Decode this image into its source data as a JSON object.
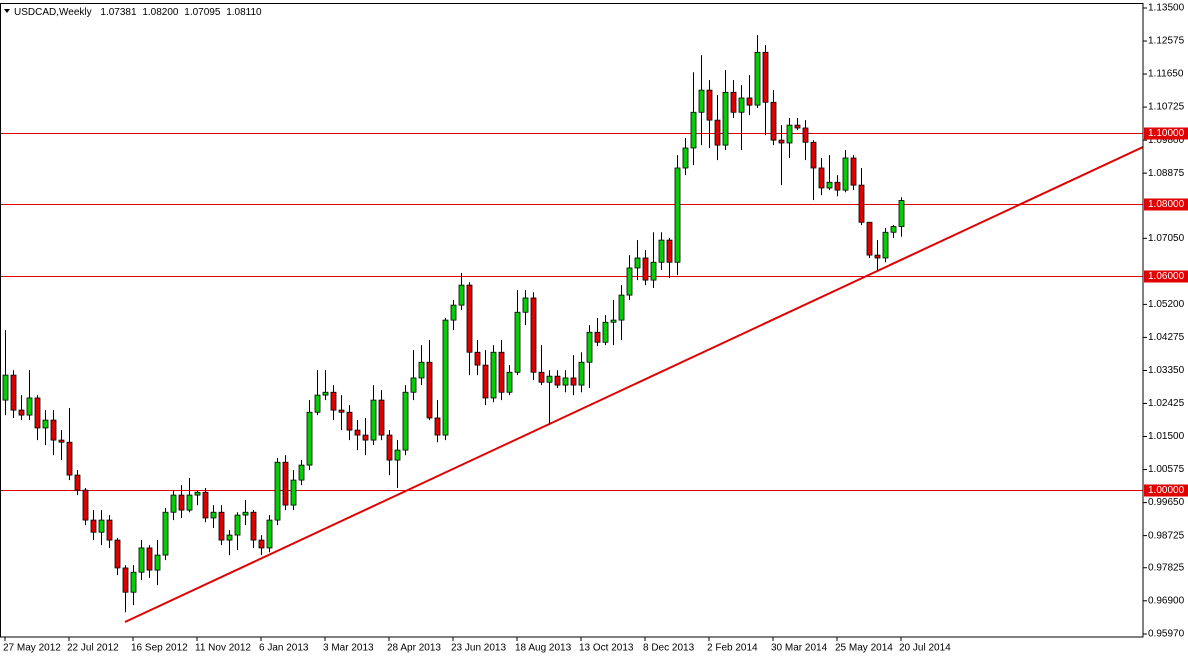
{
  "header": {
    "symbol": "USDCAD,Weekly",
    "quote": [
      "1.07381",
      "1.08200",
      "1.07095",
      "1.08110"
    ]
  },
  "chart_data": {
    "type": "candlestick",
    "categories": [
      "27 May 2012",
      null,
      null,
      null,
      null,
      null,
      null,
      null,
      "22 Jul 2012",
      null,
      null,
      null,
      null,
      null,
      null,
      null,
      "16 Sep 2012",
      null,
      null,
      null,
      null,
      null,
      null,
      null,
      "11 Nov 2012",
      null,
      null,
      null,
      null,
      null,
      null,
      null,
      "6 Jan 2013",
      null,
      null,
      null,
      null,
      null,
      null,
      null,
      "3 Mar 2013",
      null,
      null,
      null,
      null,
      null,
      null,
      null,
      "28 Apr 2013",
      null,
      null,
      null,
      null,
      null,
      null,
      null,
      "23 Jun 2013",
      null,
      null,
      null,
      null,
      null,
      null,
      null,
      "18 Aug 2013",
      null,
      null,
      null,
      null,
      null,
      null,
      null,
      "13 Oct 2013",
      null,
      null,
      null,
      null,
      null,
      null,
      null,
      "8 Dec 2013",
      null,
      null,
      null,
      null,
      null,
      null,
      null,
      "2 Feb 2014",
      null,
      null,
      null,
      null,
      null,
      null,
      null,
      "30 Mar 2014",
      null,
      null,
      null,
      null,
      null,
      null,
      null,
      "25 May 2014",
      null,
      null,
      null,
      null,
      null,
      null,
      null,
      "20 Jul 2014"
    ],
    "open": [
      1.0252,
      1.0322,
      1.0224,
      1.021,
      1.0258,
      1.0174,
      1.0196,
      1.014,
      1.0134,
      1.0042,
      1.0,
      0.9916,
      0.9882,
      0.9916,
      0.986,
      0.9782,
      0.9714,
      0.977,
      0.9838,
      0.9776,
      0.9818,
      0.9938,
      0.9986,
      0.9944,
      0.9986,
      0.9994,
      0.9922,
      0.9938,
      0.986,
      0.9874,
      0.993,
      0.9938,
      0.986,
      0.9838,
      0.9916,
      1.0078,
      0.9958,
      1.0028,
      1.007,
      1.0218,
      1.0266,
      1.0274,
      1.0224,
      1.0218,
      1.0168,
      1.0154,
      1.014,
      1.0252,
      1.0154,
      1.0084,
      1.0112,
      1.0274,
      1.0314,
      1.0358,
      1.0202,
      1.0154,
      1.0476,
      1.0518,
      1.0574,
      1.0386,
      1.035,
      1.0258,
      1.0386,
      1.0274,
      1.033,
      1.0498,
      1.0538,
      1.033,
      1.0302,
      1.0319,
      1.0294,
      1.0314,
      1.0294,
      1.0358,
      1.0442,
      1.0414,
      1.047,
      1.0476,
      1.0546,
      1.0622,
      1.065,
      1.0588,
      1.0638,
      1.07,
      1.0638,
      1.0902,
      1.0958,
      1.1058,
      1.112,
      1.1036,
      1.0966,
      1.1114,
      1.1058,
      1.1098,
      1.1078,
      1.1226,
      1.1086,
      1.098,
      1.0972,
      1.1022,
      1.1014,
      1.0974,
      1.0902,
      1.0846,
      1.0862,
      1.084,
      1.093,
      1.0854,
      1.075,
      1.0658,
      1.065,
      1.0722,
      1.07381
    ],
    "high": [
      1.0448,
      1.0336,
      1.0266,
      1.0336,
      1.0266,
      1.0224,
      1.0224,
      1.0168,
      1.023,
      1.0056,
      1.0006,
      0.9944,
      0.9944,
      0.993,
      0.9866,
      0.979,
      0.979,
      0.986,
      0.9846,
      0.986,
      0.995,
      1.0,
      1.0014,
      1.0034,
      1.0,
      1.0006,
      0.9958,
      0.9958,
      0.9888,
      0.9938,
      0.9972,
      0.9944,
      0.9874,
      0.993,
      1.009,
      1.0098,
      1.0056,
      1.0084,
      1.0252,
      1.0336,
      1.0336,
      1.0294,
      1.0266,
      1.0238,
      1.0196,
      1.0202,
      1.0294,
      1.028,
      1.0168,
      1.014,
      1.0294,
      1.0392,
      1.0406,
      1.042,
      1.0252,
      1.0482,
      1.0532,
      1.0608,
      1.0582,
      1.042,
      1.0392,
      1.0406,
      1.042,
      1.035,
      1.056,
      1.056,
      1.0554,
      1.0406,
      1.0336,
      1.0336,
      1.0336,
      1.0378,
      1.0386,
      1.0462,
      1.0482,
      1.049,
      1.0532,
      1.0574,
      1.0658,
      1.07,
      1.0672,
      1.0722,
      1.0722,
      1.0706,
      1.0938,
      1.0986,
      1.117,
      1.1218,
      1.1148,
      1.1106,
      1.1176,
      1.1148,
      1.1134,
      1.1162,
      1.1274,
      1.1246,
      1.112,
      1.1022,
      1.1042,
      1.1042,
      1.1036,
      1.098,
      1.093,
      1.0938,
      1.0882,
      1.0952,
      1.0938,
      1.0902,
      1.075,
      1.07,
      1.0734,
      1.0742,
      1.082
    ],
    "low": [
      1.021,
      1.0202,
      1.0196,
      1.0196,
      1.014,
      1.0126,
      1.0098,
      1.0084,
      1.0028,
      0.9986,
      0.9902,
      0.986,
      0.9846,
      0.9838,
      0.9762,
      0.9658,
      0.9678,
      0.9748,
      0.9754,
      0.9734,
      0.9804,
      0.9916,
      0.9922,
      0.9938,
      0.9958,
      0.991,
      0.9894,
      0.9846,
      0.9818,
      0.9832,
      0.9902,
      0.9838,
      0.9818,
      0.9826,
      0.9902,
      0.9944,
      0.9944,
      1.0014,
      1.0056,
      1.021,
      1.0252,
      1.0196,
      1.0168,
      1.014,
      1.0112,
      1.0098,
      1.0126,
      1.014,
      1.0042,
      1.0006,
      1.0098,
      1.0252,
      1.0294,
      1.0196,
      1.0134,
      1.014,
      1.0448,
      1.0504,
      1.0322,
      1.0322,
      1.0238,
      1.0246,
      1.0252,
      1.0266,
      1.0322,
      1.0462,
      1.0308,
      1.0294,
      1.0182,
      1.0286,
      1.0274,
      1.0266,
      1.0274,
      1.0286,
      1.0403,
      1.0406,
      1.0406,
      1.042,
      1.0532,
      1.0588,
      1.0574,
      1.0566,
      1.0616,
      1.0594,
      1.0602,
      1.0882,
      1.091,
      1.0966,
      1.0958,
      1.0924,
      1.0952,
      1.1042,
      1.0952,
      1.105,
      1.107,
      1.0994,
      1.0966,
      1.0854,
      1.093,
      1.1008,
      1.0924,
      1.0812,
      1.0826,
      1.084,
      1.0823,
      1.0834,
      1.084,
      1.0742,
      1.065,
      1.0616,
      1.0638,
      1.0706,
      1.07095
    ],
    "close": [
      1.0322,
      1.0224,
      1.021,
      1.0258,
      1.0174,
      1.0196,
      1.014,
      1.0134,
      1.0042,
      1.0,
      0.9916,
      0.9882,
      0.9916,
      0.986,
      0.9782,
      0.9714,
      0.977,
      0.9838,
      0.9776,
      0.9818,
      0.9938,
      0.9986,
      0.9944,
      0.9986,
      0.9994,
      0.9922,
      0.9938,
      0.986,
      0.9874,
      0.993,
      0.9938,
      0.986,
      0.9838,
      0.9916,
      1.0078,
      0.9958,
      1.0028,
      1.007,
      1.0218,
      1.0266,
      1.0274,
      1.0224,
      1.0218,
      1.0168,
      1.0154,
      1.014,
      1.0252,
      1.0154,
      1.0084,
      1.0112,
      1.0274,
      1.0314,
      1.0358,
      1.0202,
      1.0154,
      1.0476,
      1.0518,
      1.0574,
      1.0386,
      1.035,
      1.0258,
      1.0386,
      1.0274,
      1.033,
      1.0498,
      1.0538,
      1.033,
      1.0302,
      1.0319,
      1.0294,
      1.0314,
      1.0294,
      1.0358,
      1.0442,
      1.0414,
      1.047,
      1.0476,
      1.0546,
      1.0622,
      1.065,
      1.0588,
      1.0638,
      1.07,
      1.0638,
      1.0902,
      1.0958,
      1.1058,
      1.112,
      1.1036,
      1.0966,
      1.1114,
      1.1058,
      1.1098,
      1.1078,
      1.1226,
      1.1086,
      1.098,
      1.0972,
      1.1022,
      1.1014,
      1.0974,
      1.0902,
      1.0846,
      1.0862,
      1.084,
      1.093,
      1.0854,
      1.075,
      1.0658,
      1.065,
      1.0722,
      1.07381,
      1.0811
    ],
    "up_color": "#00d000",
    "down_color": "#e00000",
    "ylim": [
      0.9597,
      1.135
    ],
    "yticks": [
      {
        "value": 1.135,
        "label": "1.13500"
      },
      {
        "value": 1.12575,
        "label": "1.12575"
      },
      {
        "value": 1.1165,
        "label": "1.11650"
      },
      {
        "value": 1.10725,
        "label": "1.10725"
      },
      {
        "value": 1.098,
        "label": "1.09800"
      },
      {
        "value": 1.08875,
        "label": "1.08875"
      },
      {
        "value": 1.0705,
        "label": "1.07050"
      },
      {
        "value": 1.052,
        "label": "1.05200"
      },
      {
        "value": 1.04275,
        "label": "1.04275"
      },
      {
        "value": 1.0335,
        "label": "1.03350"
      },
      {
        "value": 1.02425,
        "label": "1.02425"
      },
      {
        "value": 1.015,
        "label": "1.01500"
      },
      {
        "value": 1.00575,
        "label": "1.00575"
      },
      {
        "value": 0.9965,
        "label": "0.99650"
      },
      {
        "value": 0.98725,
        "label": "0.98725"
      },
      {
        "value": 0.97825,
        "label": "0.97825"
      },
      {
        "value": 0.969,
        "label": "0.96900"
      },
      {
        "value": 0.9597,
        "label": "0.95970"
      }
    ],
    "hlines": [
      {
        "value": 1.1,
        "label": "1.10000"
      },
      {
        "value": 1.08,
        "label": "1.08000"
      },
      {
        "value": 1.06,
        "label": "1.06000"
      },
      {
        "value": 1.0,
        "label": "1.00000"
      }
    ],
    "hline_color": "#e00000"
  }
}
